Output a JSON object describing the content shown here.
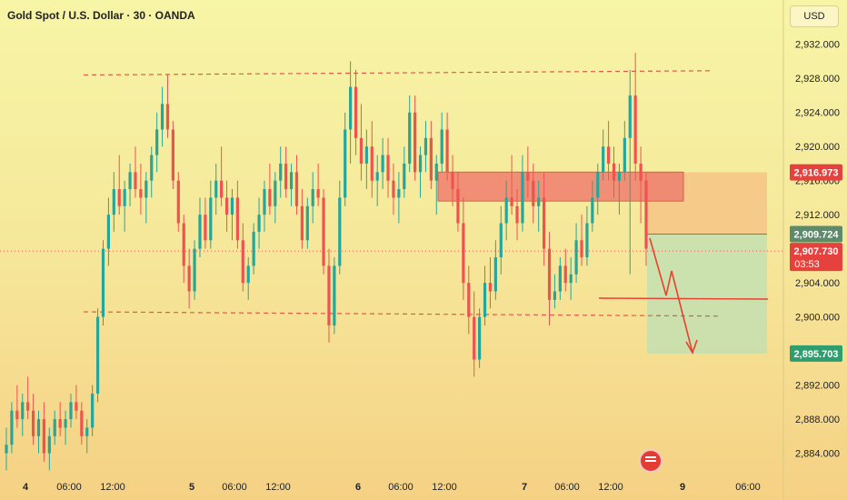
{
  "header": {
    "title": "Gold Spot / U.S. Dollar · 30 · OANDA"
  },
  "currency_button": {
    "label": "USD"
  },
  "colors": {
    "bull": "#26a69a",
    "bear": "#ef5350",
    "level": "#e05a4a",
    "zone": "#f08070",
    "target": "#2e9e6e"
  },
  "chart_data": {
    "type": "candlestick",
    "interval": "30",
    "ylim": [
      2881.5,
      2934.0
    ],
    "yticks": [
      "2,884.000",
      "2,888.000",
      "2,892.000",
      "2,896.000",
      "2,900.000",
      "2,904.000",
      "2,908.000",
      "2,912.000",
      "2,916.000",
      "2,920.000",
      "2,924.000",
      "2,928.000",
      "2,932.000"
    ],
    "xticks": [
      "4",
      "06:00",
      "12:00",
      "5",
      "06:00",
      "12:00",
      "6",
      "06:00",
      "12:00",
      "7",
      "06:00",
      "12:00",
      "9",
      "06:00"
    ],
    "price_labels": {
      "entry": "2,916.973",
      "mid": "2,909.724",
      "last": "2,907.730",
      "countdown": "03:53",
      "target": "2,895.703"
    },
    "levels": {
      "resistance": [
        2928.4,
        2928.9
      ],
      "support": [
        2900.1,
        2900.6
      ]
    },
    "sell_zone": [
      2913.6,
      2917.0
    ],
    "position": {
      "stop": 2916.97,
      "entry": 2909.72,
      "target": 2895.7
    },
    "candles": [
      [
        2884,
        2887,
        2882,
        2885
      ],
      [
        2885,
        2890,
        2884,
        2889
      ],
      [
        2889,
        2892,
        2887,
        2888
      ],
      [
        2888,
        2891,
        2886,
        2890
      ],
      [
        2890,
        2893,
        2888,
        2889
      ],
      [
        2889,
        2891,
        2885,
        2886
      ],
      [
        2886,
        2889,
        2884,
        2888
      ],
      [
        2888,
        2890,
        2883,
        2884
      ],
      [
        2884,
        2887,
        2882,
        2886
      ],
      [
        2886,
        2889,
        2885,
        2888
      ],
      [
        2888,
        2890,
        2886,
        2887
      ],
      [
        2887,
        2889,
        2885,
        2888
      ],
      [
        2888,
        2891,
        2887,
        2890
      ],
      [
        2890,
        2892,
        2888,
        2889
      ],
      [
        2889,
        2890,
        2885,
        2886
      ],
      [
        2886,
        2888,
        2884,
        2887
      ],
      [
        2887,
        2892,
        2886,
        2891
      ],
      [
        2891,
        2901,
        2890,
        2900
      ],
      [
        2900,
        2909,
        2899,
        2908
      ],
      [
        2908,
        2914,
        2906,
        2912
      ],
      [
        2912,
        2917,
        2910,
        2915
      ],
      [
        2915,
        2919,
        2912,
        2913
      ],
      [
        2913,
        2916,
        2910,
        2915
      ],
      [
        2915,
        2918,
        2913,
        2917
      ],
      [
        2917,
        2920,
        2914,
        2915
      ],
      [
        2915,
        2918,
        2912,
        2914
      ],
      [
        2914,
        2917,
        2911,
        2916
      ],
      [
        2916,
        2920,
        2914,
        2919
      ],
      [
        2919,
        2924,
        2917,
        2922
      ],
      [
        2922,
        2927,
        2920,
        2925
      ],
      [
        2925,
        2928.5,
        2921,
        2922
      ],
      [
        2922,
        2923,
        2915,
        2916
      ],
      [
        2916,
        2917,
        2910,
        2911
      ],
      [
        2911,
        2912,
        2904,
        2906
      ],
      [
        2906,
        2908,
        2901,
        2903
      ],
      [
        2903,
        2909,
        2902,
        2908
      ],
      [
        2908,
        2914,
        2907,
        2912
      ],
      [
        2912,
        2914,
        2908,
        2909
      ],
      [
        2909,
        2916,
        2908,
        2914
      ],
      [
        2914,
        2918,
        2912,
        2916
      ],
      [
        2916,
        2920,
        2913,
        2914
      ],
      [
        2914,
        2916,
        2910,
        2912
      ],
      [
        2912,
        2915,
        2909,
        2914
      ],
      [
        2914,
        2916,
        2908,
        2909
      ],
      [
        2909,
        2911,
        2903,
        2904
      ],
      [
        2904,
        2907,
        2902,
        2906
      ],
      [
        2906,
        2911,
        2905,
        2910
      ],
      [
        2910,
        2914,
        2908,
        2912
      ],
      [
        2912,
        2916,
        2910,
        2915
      ],
      [
        2915,
        2918,
        2912,
        2913
      ],
      [
        2913,
        2917,
        2911,
        2916
      ],
      [
        2916,
        2920,
        2914,
        2918
      ],
      [
        2918,
        2920,
        2914,
        2915
      ],
      [
        2915,
        2918,
        2913,
        2917
      ],
      [
        2917,
        2919,
        2912,
        2913
      ],
      [
        2913,
        2915,
        2908,
        2909
      ],
      [
        2909,
        2914,
        2908,
        2913
      ],
      [
        2913,
        2917,
        2911,
        2915
      ],
      [
        2915,
        2918,
        2913,
        2914
      ],
      [
        2914,
        2915,
        2905,
        2906
      ],
      [
        2906,
        2908,
        2897,
        2899
      ],
      [
        2899,
        2907,
        2898,
        2906
      ],
      [
        2906,
        2916,
        2905,
        2914
      ],
      [
        2914,
        2924,
        2913,
        2922
      ],
      [
        2922,
        2930,
        2918,
        2927
      ],
      [
        2927,
        2929,
        2919,
        2921
      ],
      [
        2921,
        2925,
        2916,
        2918
      ],
      [
        2918,
        2922,
        2915,
        2920
      ],
      [
        2920,
        2923,
        2914,
        2916
      ],
      [
        2916,
        2919,
        2913,
        2917
      ],
      [
        2917,
        2921,
        2915,
        2919
      ],
      [
        2919,
        2921,
        2914,
        2916
      ],
      [
        2916,
        2918,
        2912,
        2914
      ],
      [
        2914,
        2917,
        2911,
        2915
      ],
      [
        2915,
        2920,
        2914,
        2918
      ],
      [
        2918,
        2926,
        2917,
        2924
      ],
      [
        2924,
        2926,
        2916,
        2917
      ],
      [
        2917,
        2920,
        2914,
        2919
      ],
      [
        2919,
        2923,
        2917,
        2921
      ],
      [
        2921,
        2923,
        2915,
        2916
      ],
      [
        2916,
        2919,
        2912,
        2918
      ],
      [
        2918,
        2924,
        2917,
        2922
      ],
      [
        2922,
        2924,
        2916,
        2917
      ],
      [
        2917,
        2919,
        2913,
        2915
      ],
      [
        2915,
        2917,
        2910,
        2911
      ],
      [
        2911,
        2914,
        2902,
        2904
      ],
      [
        2904,
        2906,
        2898,
        2900
      ],
      [
        2900,
        2903,
        2893,
        2895
      ],
      [
        2895,
        2901,
        2894,
        2900
      ],
      [
        2900,
        2906,
        2899,
        2904
      ],
      [
        2904,
        2907,
        2901,
        2903
      ],
      [
        2903,
        2909,
        2902,
        2907
      ],
      [
        2907,
        2913,
        2905,
        2911
      ],
      [
        2911,
        2916,
        2909,
        2914
      ],
      [
        2914,
        2919,
        2912,
        2913
      ],
      [
        2913,
        2915,
        2909,
        2911
      ],
      [
        2911,
        2919,
        2910,
        2917
      ],
      [
        2917,
        2920,
        2914,
        2916
      ],
      [
        2916,
        2918,
        2911,
        2913
      ],
      [
        2913,
        2916,
        2910,
        2914
      ],
      [
        2914,
        2917,
        2906,
        2908
      ],
      [
        2908,
        2910,
        2899,
        2902
      ],
      [
        2902,
        2905,
        2901,
        2903
      ],
      [
        2903,
        2907,
        2902,
        2906
      ],
      [
        2906,
        2908,
        2903,
        2904
      ],
      [
        2904,
        2907,
        2902,
        2905
      ],
      [
        2905,
        2911,
        2904,
        2909
      ],
      [
        2909,
        2912,
        2906,
        2907
      ],
      [
        2907,
        2913,
        2906,
        2911
      ],
      [
        2911,
        2916,
        2910,
        2914
      ],
      [
        2914,
        2918,
        2912,
        2917
      ],
      [
        2917,
        2922,
        2916,
        2920
      ],
      [
        2920,
        2923,
        2916,
        2918
      ],
      [
        2918,
        2920,
        2914,
        2916
      ],
      [
        2916,
        2918,
        2912,
        2917
      ],
      [
        2917,
        2923,
        2916,
        2921
      ],
      [
        2921,
        2929,
        2905,
        2926
      ],
      [
        2926,
        2931,
        2916,
        2918
      ],
      [
        2918,
        2920,
        2911,
        2916
      ],
      [
        2916,
        2917,
        2906,
        2908
      ]
    ]
  }
}
